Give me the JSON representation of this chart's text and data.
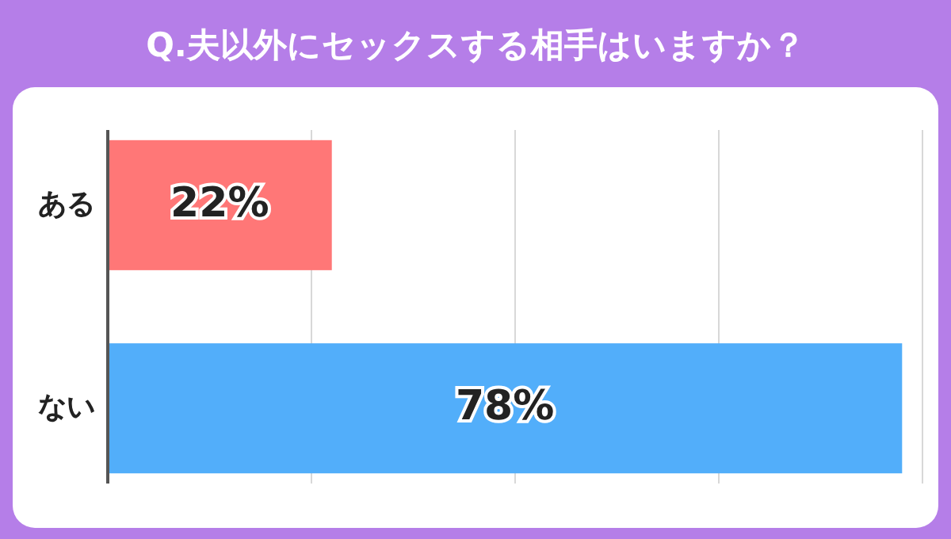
{
  "chart_data": {
    "type": "bar",
    "orientation": "horizontal",
    "title": "Q.夫以外にセックスする相手はいますか？",
    "categories": [
      "ある",
      "ない"
    ],
    "values": [
      22,
      78
    ],
    "colors": [
      "#ff7777",
      "#52aefa"
    ],
    "xlim": [
      0,
      80
    ],
    "xticks": [
      {
        "value": 0,
        "label": null
      },
      {
        "value": 20,
        "label": null
      },
      {
        "value": 40,
        "label": null
      },
      {
        "value": 60,
        "label": null
      },
      {
        "value": 80,
        "label": null
      }
    ],
    "tick_labels": "y",
    "grid": "x",
    "value_labels": [
      "22%",
      "78%"
    ]
  }
}
